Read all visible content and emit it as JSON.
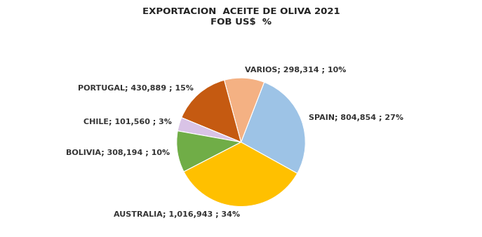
{
  "chart_data": {
    "type": "pie",
    "title": "EXPORTACION  ACEITE DE OLIVA 2021\nFOB US$  %",
    "values": [
      804854,
      298314,
      430889,
      101560,
      308194,
      1016943
    ],
    "value_labels": [
      "SPAIN; 804,854 ; 27%",
      "VARIOS; 298,314 ; 10%",
      "PORTUGAL; 430,889 ; 15%",
      "CHILE; 101,560 ; 3%",
      "BOLIVIA; 308,194 ; 10%",
      "AUSTRALIA; 1,016,943 ; 34%"
    ],
    "colors": [
      "#9DC3E6",
      "#F4B183",
      "#C55A11",
      "#D9C3E6",
      "#70AD47",
      "#FFC000"
    ],
    "data_labels": true
  }
}
